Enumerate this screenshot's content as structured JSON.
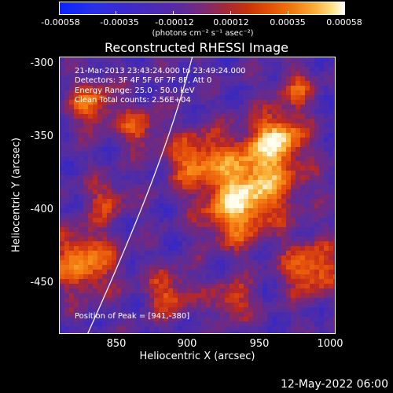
{
  "colorbar": {
    "tick_labels": [
      "-0.00058",
      "-0.00035",
      "-0.00012",
      "0.00012",
      "0.00035",
      "0.00058"
    ],
    "unit_label": "(photons cm⁻² s⁻¹ asec⁻²)",
    "colors": [
      "#0a24ff",
      "#5b2aa0",
      "#c8320a",
      "#f07a10",
      "#ffffff"
    ]
  },
  "plot": {
    "title": "Reconstructed RHESSI Image",
    "info": {
      "time_range": "21-Mar-2013 23:43:24.000 to 23:49:24.000",
      "detectors": "Detectors: 3F 4F 5F 6F 7F 8F, Att 0",
      "energy_range": "Energy Range: 25.0 - 50.0 keV",
      "method": "Clean     Total counts: 2.56E+04"
    },
    "peak_position": "Position of Peak = [941,-380]"
  },
  "chart_data": {
    "type": "heatmap",
    "title": "Reconstructed RHESSI Image",
    "xlabel": "Heliocentric X (arcsec)",
    "ylabel": "Heliocentric Y (arcsec)",
    "x_ticks": [
      "850",
      "900",
      "950",
      "1000"
    ],
    "y_ticks": [
      "-300",
      "-350",
      "-400",
      "-450"
    ],
    "xlim": [
      811,
      1000
    ],
    "ylim": [
      -488,
      -298
    ],
    "peak": [
      941,
      -380
    ],
    "colorbar_range": [
      -0.00058,
      0.00058
    ]
  },
  "footer": {
    "date": "12-May-2022 06:00"
  }
}
